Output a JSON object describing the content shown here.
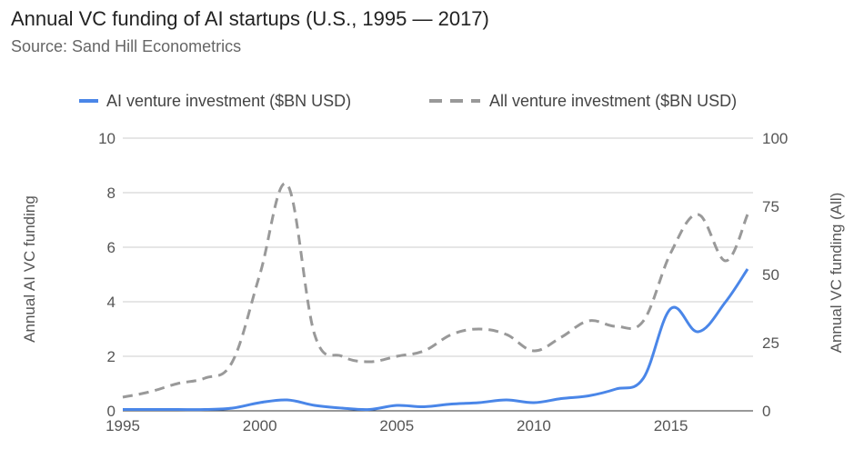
{
  "chart_data": {
    "type": "line",
    "title": "Annual VC funding of AI startups (U.S., 1995 — 2017)",
    "subtitle": "Source: Sand Hill Econometrics",
    "ylabel_left": "Annual AI VC funding",
    "ylabel_right": "Annual VC funding (All)",
    "xlim": [
      1995,
      2018
    ],
    "ylim_left": [
      0,
      10
    ],
    "ylim_right": [
      0,
      100
    ],
    "x_ticks": [
      1995,
      2000,
      2005,
      2010,
      2015
    ],
    "y_ticks_left": [
      0,
      2,
      4,
      6,
      8,
      10
    ],
    "y_ticks_right": [
      0,
      25,
      50,
      75,
      100
    ],
    "grid": true,
    "legend_position": "top",
    "series": [
      {
        "name": "AI venture investment ($BN USD)",
        "axis": "left",
        "color": "#4a86e8",
        "dash": "solid",
        "points": [
          [
            1995,
            0.05
          ],
          [
            1996,
            0.05
          ],
          [
            1997,
            0.05
          ],
          [
            1998,
            0.05
          ],
          [
            1999,
            0.1
          ],
          [
            2000,
            0.3
          ],
          [
            2001,
            0.4
          ],
          [
            2002,
            0.2
          ],
          [
            2003,
            0.1
          ],
          [
            2004,
            0.05
          ],
          [
            2005,
            0.2
          ],
          [
            2006,
            0.15
          ],
          [
            2007,
            0.25
          ],
          [
            2008,
            0.3
          ],
          [
            2009,
            0.4
          ],
          [
            2010,
            0.3
          ],
          [
            2011,
            0.45
          ],
          [
            2012,
            0.55
          ],
          [
            2013,
            0.8
          ],
          [
            2014,
            1.2
          ],
          [
            2015,
            3.75
          ],
          [
            2016,
            2.9
          ],
          [
            2017,
            4.0
          ],
          [
            2017.8,
            5.2
          ]
        ]
      },
      {
        "name": "All venture investment ($BN USD)",
        "axis": "right",
        "color": "#999999",
        "dash": "dashed",
        "points": [
          [
            1995,
            5
          ],
          [
            1996,
            7
          ],
          [
            1997,
            10
          ],
          [
            1998,
            12
          ],
          [
            1999,
            18
          ],
          [
            2000,
            50
          ],
          [
            2001,
            83
          ],
          [
            2002,
            28
          ],
          [
            2003,
            20
          ],
          [
            2004,
            18
          ],
          [
            2005,
            20
          ],
          [
            2006,
            22
          ],
          [
            2007,
            28
          ],
          [
            2008,
            30
          ],
          [
            2009,
            28
          ],
          [
            2010,
            22
          ],
          [
            2011,
            27
          ],
          [
            2012,
            33
          ],
          [
            2013,
            31
          ],
          [
            2014,
            33
          ],
          [
            2015,
            58
          ],
          [
            2016,
            72
          ],
          [
            2017,
            55
          ],
          [
            2017.8,
            72
          ]
        ]
      }
    ]
  }
}
